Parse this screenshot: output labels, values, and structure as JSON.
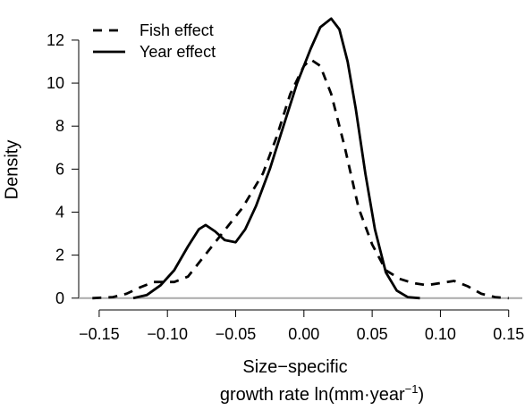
{
  "chart_data": {
    "type": "line",
    "xlabel": [
      "Size−specific",
      "growth rate ln(mm·year"
    ],
    "xlabel_sup": "−1",
    "xlabel_end": ")",
    "ylabel": "Density",
    "legend": "top-left",
    "xlim": [
      -0.165,
      0.16
    ],
    "ylim": [
      -0.55,
      13.7
    ],
    "xticks": [
      {
        "value": -0.15,
        "label": "−0.15"
      },
      {
        "value": -0.1,
        "label": "−0.10"
      },
      {
        "value": -0.05,
        "label": "−0.05"
      },
      {
        "value": 0,
        "label": "0.00"
      },
      0.05,
      {
        "value": 0.1,
        "label": "0.10"
      },
      0.15
    ],
    "yticks": [
      0,
      2,
      4,
      6,
      8,
      10,
      12
    ],
    "baseline": {
      "value": 0,
      "color": "#aaaaaa"
    },
    "series": [
      {
        "name": "Fish effect",
        "color": "#000000",
        "dash": true,
        "x": [
          -0.155,
          -0.14,
          -0.13,
          -0.12,
          -0.11,
          -0.095,
          -0.085,
          -0.075,
          -0.06,
          -0.045,
          -0.03,
          -0.02,
          -0.01,
          0,
          0.005,
          0.012,
          0.02,
          0.03,
          0.04,
          0.05,
          0.06,
          0.07,
          0.08,
          0.09,
          0.1,
          0.11,
          0.12,
          0.13,
          0.14,
          0.15
        ],
        "values": [
          0,
          0.05,
          0.2,
          0.5,
          0.75,
          0.75,
          1.0,
          1.8,
          3.0,
          4.2,
          5.8,
          7.5,
          9.5,
          10.8,
          11.1,
          10.8,
          9.5,
          7.0,
          4.2,
          2.5,
          1.3,
          0.9,
          0.7,
          0.6,
          0.7,
          0.8,
          0.55,
          0.2,
          0.05,
          0
        ]
      },
      {
        "name": "Year effect",
        "color": "#000000",
        "dash": false,
        "x": [
          -0.125,
          -0.115,
          -0.105,
          -0.095,
          -0.085,
          -0.077,
          -0.072,
          -0.065,
          -0.058,
          -0.05,
          -0.043,
          -0.035,
          -0.025,
          -0.015,
          -0.005,
          0.005,
          0.012,
          0.02,
          0.026,
          0.032,
          0.038,
          0.045,
          0.052,
          0.06,
          0.068,
          0.076,
          0.085
        ],
        "values": [
          0,
          0.15,
          0.6,
          1.3,
          2.4,
          3.2,
          3.4,
          3.1,
          2.7,
          2.6,
          3.2,
          4.3,
          6.0,
          8.0,
          10.0,
          11.6,
          12.6,
          13.0,
          12.5,
          11.0,
          8.8,
          5.8,
          3.2,
          1.2,
          0.35,
          0.05,
          0
        ]
      }
    ]
  }
}
